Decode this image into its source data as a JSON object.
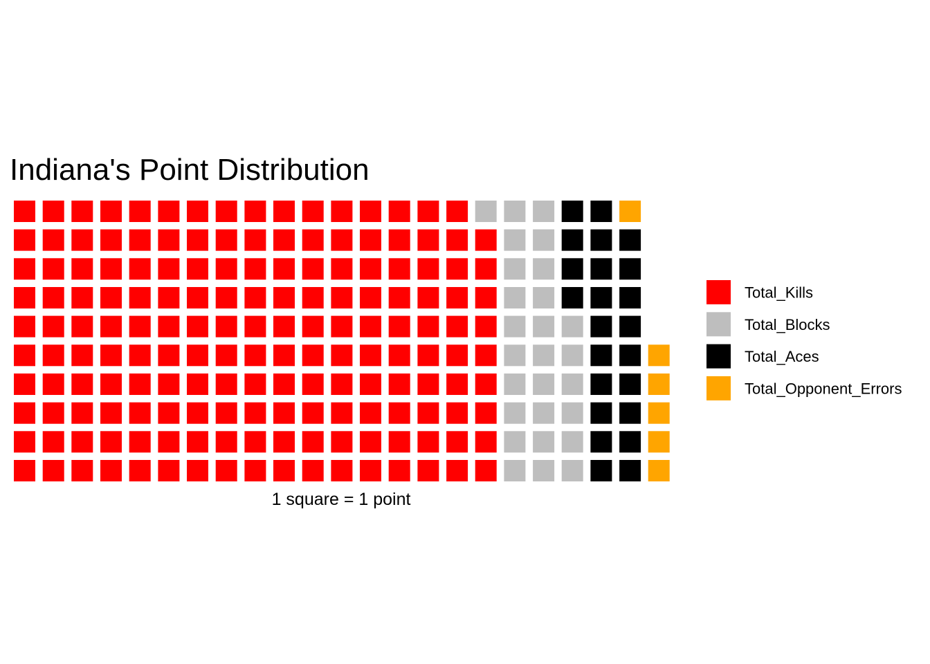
{
  "chart_data": {
    "type": "waffle",
    "title": "Indiana's Point Distribution",
    "caption": "1 square = 1 point",
    "rows": 10,
    "legend_position": "right",
    "series": [
      {
        "name": "Total_Kills",
        "value": 169,
        "color": "#FF0000"
      },
      {
        "name": "Total_Blocks",
        "value": 27,
        "color": "#BEBEBE"
      },
      {
        "name": "Total_Aces",
        "value": 23,
        "color": "#000000"
      },
      {
        "name": "Total_Opponent_Errors",
        "value": 6,
        "color": "#FFA500"
      }
    ]
  }
}
